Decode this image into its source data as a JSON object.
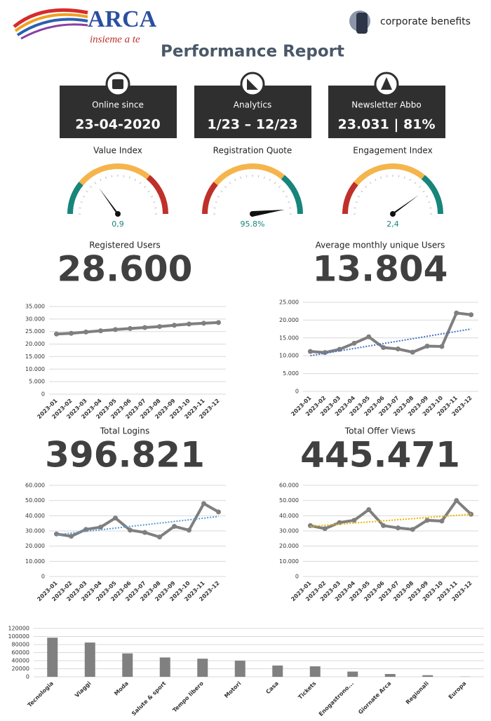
{
  "header": {
    "logo": "ARCA",
    "tagline": "insieme a te",
    "partner": "corporate benefits",
    "title": "Performance Report"
  },
  "kpis": [
    {
      "label": "Online since",
      "value": "23-04-2020"
    },
    {
      "label": "Analytics",
      "value": "1/23 – 12/23"
    },
    {
      "label": "Newsletter Abbo",
      "value": "23.031 | 81%"
    }
  ],
  "gauges": [
    {
      "title": "Value Index",
      "value": 0.9,
      "value_label": "0,9",
      "range": [
        0,
        3
      ],
      "bands": [
        "#17857a",
        "#f5b54c",
        "#c0302a"
      ]
    },
    {
      "title": "Registration Quote",
      "value": 95.8,
      "value_label": "95.8%",
      "range": [
        0,
        100
      ],
      "bands": [
        "#c0302a",
        "#f5b54c",
        "#17857a"
      ]
    },
    {
      "title": "Engagement Index",
      "value": 2.4,
      "value_label": "2,4",
      "range": [
        0,
        3
      ],
      "bands": [
        "#c0302a",
        "#f5b54c",
        "#17857a"
      ]
    }
  ],
  "chart_data": [
    {
      "type": "line",
      "title": "Registered Users",
      "headline": "28.600",
      "categories": [
        "2023-01",
        "2023-02",
        "2023-03",
        "2023-04",
        "2023-05",
        "2023-06",
        "2023-07",
        "2023-08",
        "2023-09",
        "2023-10",
        "2023-11",
        "2023-12"
      ],
      "values": [
        24000,
        24300,
        24800,
        25300,
        25800,
        26200,
        26600,
        27000,
        27500,
        28000,
        28300,
        28600
      ],
      "color": "#7f7f7f",
      "ylim": [
        0,
        35000
      ],
      "yticks": [
        0,
        {
          "value": 5000,
          "label": "5.000"
        },
        {
          "value": 10000,
          "label": "10.000"
        },
        {
          "value": 15000,
          "label": "15.000"
        },
        {
          "value": 20000,
          "label": "20.000"
        },
        {
          "value": 25000,
          "label": "25.000"
        },
        {
          "value": 30000,
          "label": "30.000"
        },
        {
          "value": 35000,
          "label": "35.000"
        }
      ],
      "grid": true
    },
    {
      "type": "line",
      "title": "Average monthly unique Users",
      "headline": "13.804",
      "categories": [
        "2023-01",
        "2023-02",
        "2023-03",
        "2023-04",
        "2023-05",
        "2023-06",
        "2023-07",
        "2023-08",
        "2023-09",
        "2023-10",
        "2023-11",
        "2023-12"
      ],
      "values": [
        11200,
        10900,
        11800,
        13500,
        15300,
        12300,
        11900,
        11000,
        12700,
        12600,
        22000,
        21500
      ],
      "color": "#7f7f7f",
      "trendline": {
        "values": [
          10000,
          17500
        ],
        "color": "#4472c4"
      },
      "ylim": [
        0,
        25000
      ],
      "yticks": [
        0,
        {
          "value": 5000,
          "label": "5.000"
        },
        {
          "value": 10000,
          "label": "10.000"
        },
        {
          "value": 15000,
          "label": "15.000"
        },
        {
          "value": 20000,
          "label": "20.000"
        },
        {
          "value": 25000,
          "label": "25.000"
        }
      ],
      "grid": true
    },
    {
      "type": "line",
      "title": "Total Logins",
      "headline": "396.821",
      "categories": [
        "2023-01",
        "2023-02",
        "2023-03",
        "2023-04",
        "2023-05",
        "2023-06",
        "2023-07",
        "2023-08",
        "2023-09",
        "2023-10",
        "2023-11",
        "2023-12"
      ],
      "values": [
        28000,
        26500,
        31000,
        32500,
        38500,
        30500,
        29000,
        26000,
        33000,
        30500,
        48000,
        42500
      ],
      "color": "#7f7f7f",
      "trendline": {
        "values": [
          27500,
          39500
        ],
        "color": "#5b9bd5"
      },
      "ylim": [
        0,
        60000
      ],
      "yticks": [
        0,
        {
          "value": 10000,
          "label": "10.000"
        },
        {
          "value": 20000,
          "label": "20.000"
        },
        {
          "value": 30000,
          "label": "30.000"
        },
        {
          "value": 40000,
          "label": "40.000"
        },
        {
          "value": 50000,
          "label": "50.000"
        },
        {
          "value": 60000,
          "label": "60.000"
        }
      ],
      "grid": true
    },
    {
      "type": "line",
      "title": "Total Offer Views",
      "headline": "445.471",
      "categories": [
        "2023-01",
        "2023-02",
        "2023-03",
        "2023-04",
        "2023-05",
        "2023-06",
        "2023-07",
        "2023-08",
        "2023-09",
        "2023-10",
        "2023-11",
        "2023-12"
      ],
      "values": [
        33500,
        31500,
        35500,
        37000,
        44000,
        33500,
        32000,
        31000,
        37000,
        36500,
        50000,
        41000
      ],
      "color": "#7f7f7f",
      "trendline": {
        "values": [
          33000,
          41000
        ],
        "color": "#f0b400"
      },
      "ylim": [
        0,
        60000
      ],
      "yticks": [
        0,
        {
          "value": 10000,
          "label": "10.000"
        },
        {
          "value": 20000,
          "label": "20.000"
        },
        {
          "value": 30000,
          "label": "30.000"
        },
        {
          "value": 40000,
          "label": "40.000"
        },
        {
          "value": 50000,
          "label": "50.000"
        },
        {
          "value": 60000,
          "label": "60.000"
        }
      ],
      "grid": true
    },
    {
      "type": "bar",
      "categories": [
        "Tecnologia",
        "Viaggi",
        "Moda",
        "Salute & sport",
        "Tempo libero",
        "Motori",
        "Casa",
        "Tickets",
        "Enogastrono...",
        "Giornate Arca",
        "Regionali",
        "Europa"
      ],
      "values": [
        97000,
        85000,
        58000,
        48000,
        45000,
        40000,
        28000,
        26000,
        13000,
        7000,
        4000,
        500
      ],
      "color": "#808080",
      "ylim": [
        0,
        120000
      ],
      "yticks": [
        0,
        20000,
        40000,
        60000,
        80000,
        100000,
        120000
      ],
      "grid": true
    }
  ]
}
